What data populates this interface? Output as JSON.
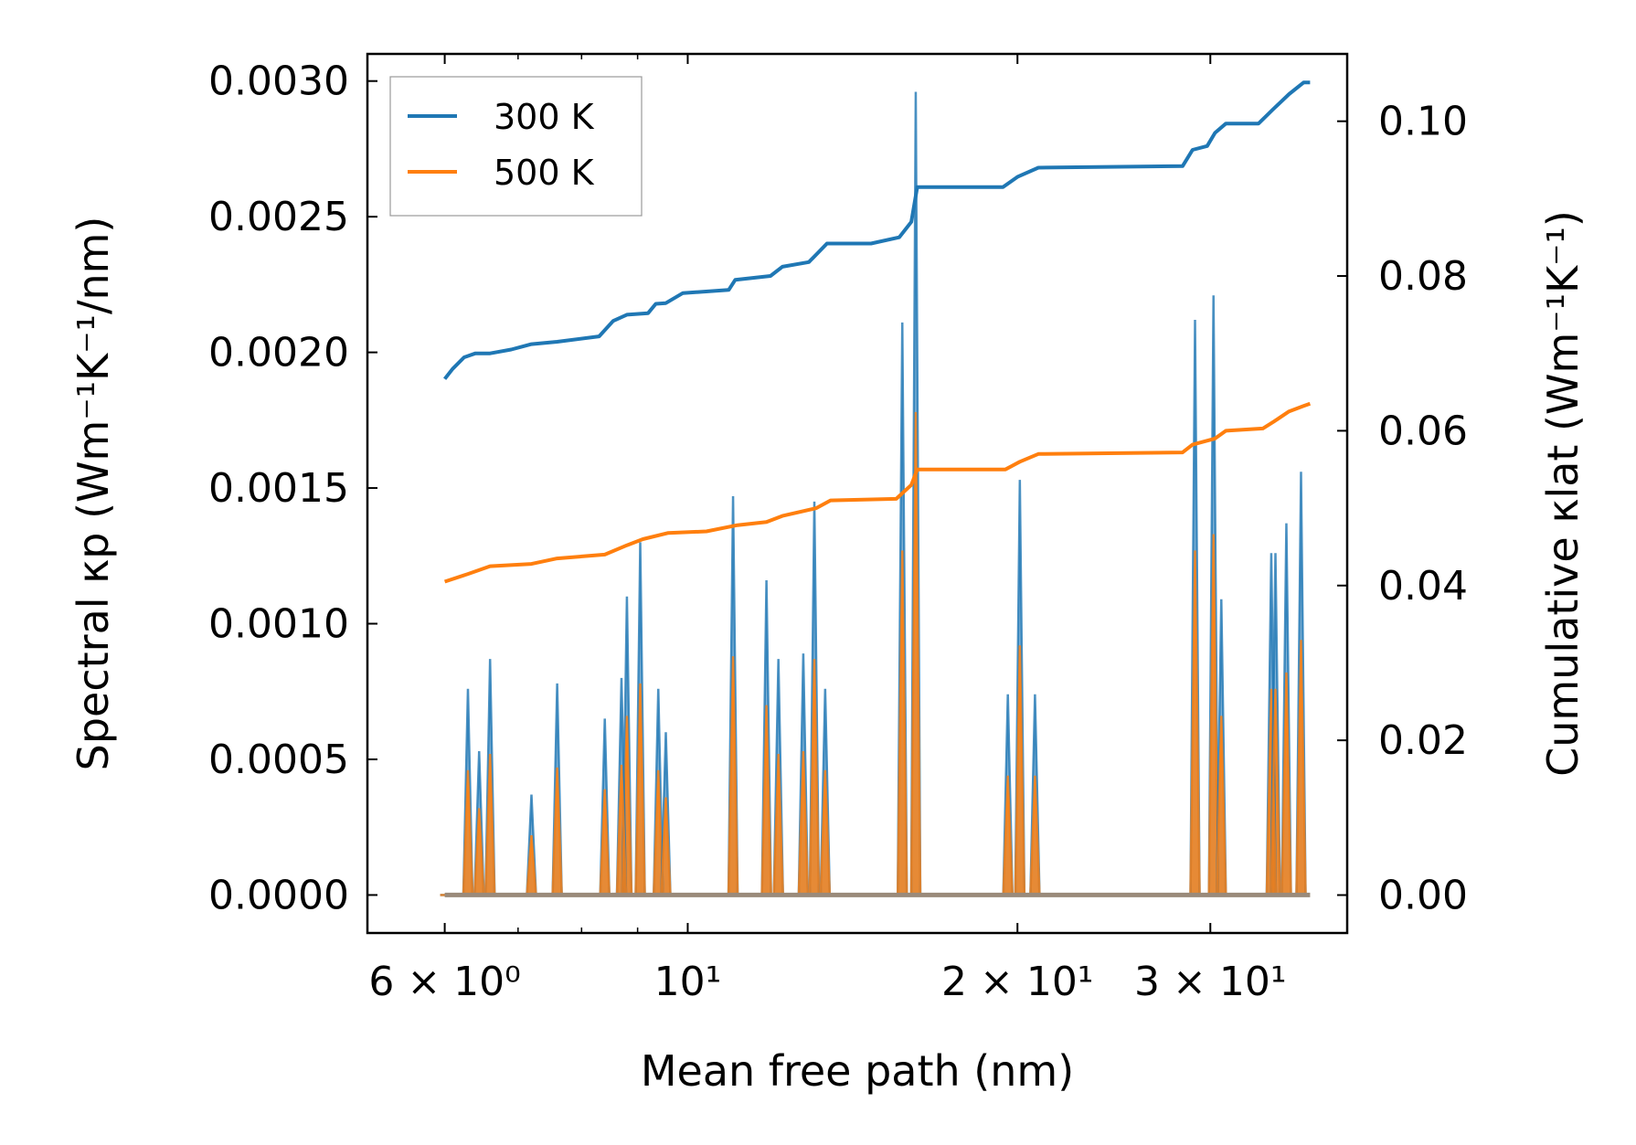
{
  "chart_data": {
    "type": "line",
    "xscale": "log",
    "xlim": [
      5.1,
      40.0
    ],
    "xlabel": "Mean free path (nm)",
    "xticks": [
      {
        "value": 6,
        "label": "6 × 10⁰"
      },
      {
        "value": 10,
        "label": "10¹"
      },
      {
        "value": 20,
        "label": "2 × 10¹"
      },
      {
        "value": 30,
        "label": "3 × 10¹"
      }
    ],
    "y_left": {
      "label": "Spectral κp (Wm⁻¹K⁻¹/nm)",
      "lim": [
        -0.00014,
        0.0031
      ],
      "ticks": [
        {
          "value": 0.0,
          "label": "0.0000"
        },
        {
          "value": 0.0005,
          "label": "0.0005"
        },
        {
          "value": 0.001,
          "label": "0.0010"
        },
        {
          "value": 0.0015,
          "label": "0.0015"
        },
        {
          "value": 0.002,
          "label": "0.0020"
        },
        {
          "value": 0.0025,
          "label": "0.0025"
        },
        {
          "value": 0.003,
          "label": "0.0030"
        }
      ]
    },
    "y_right": {
      "label": "Cumulative κlat (Wm⁻¹K⁻¹)",
      "lim": [
        -0.0049,
        0.1087
      ],
      "ticks": [
        {
          "value": 0.0,
          "label": "0.00"
        },
        {
          "value": 0.02,
          "label": "0.02"
        },
        {
          "value": 0.04,
          "label": "0.04"
        },
        {
          "value": 0.06,
          "label": "0.06"
        },
        {
          "value": 0.08,
          "label": "0.08"
        },
        {
          "value": 0.1,
          "label": "0.10"
        }
      ]
    },
    "legend": {
      "placement": "top-left",
      "entries": [
        "300 K",
        "500 K"
      ]
    },
    "colors": {
      "300 K": "#1f77b4",
      "500 K": "#ff7f0e"
    },
    "spectral_peaks": [
      {
        "x": 6.0,
        "v300": 0.0,
        "v500": 0.0
      },
      {
        "x": 6.3,
        "v300": 0.00076,
        "v500": 0.00046
      },
      {
        "x": 6.45,
        "v300": 0.00053,
        "v500": 0.00032
      },
      {
        "x": 6.6,
        "v300": 0.00087,
        "v500": 0.00052
      },
      {
        "x": 7.2,
        "v300": 0.00037,
        "v500": 0.00022
      },
      {
        "x": 7.6,
        "v300": 0.00078,
        "v500": 0.00047
      },
      {
        "x": 8.4,
        "v300": 0.00065,
        "v500": 0.00039
      },
      {
        "x": 8.8,
        "v300": 0.0011,
        "v500": 0.00066
      },
      {
        "x": 8.7,
        "v300": 0.0008,
        "v500": 0.00048
      },
      {
        "x": 9.05,
        "v300": 0.0013,
        "v500": 0.00078
      },
      {
        "x": 9.4,
        "v300": 0.00076,
        "v500": 0.00046
      },
      {
        "x": 9.55,
        "v300": 0.0006,
        "v500": 0.00036
      },
      {
        "x": 11.0,
        "v300": 0.00147,
        "v500": 0.00088
      },
      {
        "x": 11.8,
        "v300": 0.00116,
        "v500": 0.0007
      },
      {
        "x": 12.1,
        "v300": 0.00087,
        "v500": 0.00052
      },
      {
        "x": 12.75,
        "v300": 0.00089,
        "v500": 0.00053
      },
      {
        "x": 13.05,
        "v300": 0.00145,
        "v500": 0.00087
      },
      {
        "x": 13.35,
        "v300": 0.00076,
        "v500": 0.00046
      },
      {
        "x": 15.7,
        "v300": 0.00211,
        "v500": 0.00127
      },
      {
        "x": 16.15,
        "v300": 0.00296,
        "v500": 0.00178
      },
      {
        "x": 19.6,
        "v300": 0.00074,
        "v500": 0.00044
      },
      {
        "x": 20.1,
        "v300": 0.00153,
        "v500": 0.00092
      },
      {
        "x": 20.75,
        "v300": 0.00074,
        "v500": 0.00044
      },
      {
        "x": 29.05,
        "v300": 0.00212,
        "v500": 0.00127
      },
      {
        "x": 30.2,
        "v300": 0.00221,
        "v500": 0.00133
      },
      {
        "x": 30.7,
        "v300": 0.00109,
        "v500": 0.00066
      },
      {
        "x": 34.1,
        "v300": 0.00126,
        "v500": 0.00076
      },
      {
        "x": 34.4,
        "v300": 0.00126,
        "v500": 0.00076
      },
      {
        "x": 35.2,
        "v300": 0.00137,
        "v500": 0.00082
      },
      {
        "x": 36.3,
        "v300": 0.00156,
        "v500": 0.00094
      }
    ],
    "cumulative_300K": [
      [
        6.0,
        0.0667
      ],
      [
        6.1,
        0.068
      ],
      [
        6.25,
        0.0695
      ],
      [
        6.4,
        0.07
      ],
      [
        6.6,
        0.07
      ],
      [
        6.9,
        0.0705
      ],
      [
        7.2,
        0.0712
      ],
      [
        7.6,
        0.0715
      ],
      [
        8.3,
        0.0722
      ],
      [
        8.55,
        0.0742
      ],
      [
        8.8,
        0.075
      ],
      [
        9.2,
        0.0752
      ],
      [
        9.35,
        0.0764
      ],
      [
        9.55,
        0.0765
      ],
      [
        9.9,
        0.0778
      ],
      [
        10.9,
        0.0782
      ],
      [
        11.05,
        0.0795
      ],
      [
        11.9,
        0.08
      ],
      [
        12.2,
        0.0812
      ],
      [
        12.9,
        0.0818
      ],
      [
        13.15,
        0.083
      ],
      [
        13.4,
        0.0842
      ],
      [
        14.7,
        0.0842
      ],
      [
        15.6,
        0.085
      ],
      [
        16.0,
        0.087
      ],
      [
        16.2,
        0.0915
      ],
      [
        19.4,
        0.0915
      ],
      [
        20.0,
        0.0928
      ],
      [
        20.9,
        0.094
      ],
      [
        28.3,
        0.0942
      ],
      [
        28.9,
        0.0963
      ],
      [
        29.8,
        0.0968
      ],
      [
        30.3,
        0.0985
      ],
      [
        31.0,
        0.0997
      ],
      [
        33.2,
        0.0997
      ],
      [
        34.2,
        0.1015
      ],
      [
        35.4,
        0.1035
      ],
      [
        36.5,
        0.105
      ],
      [
        37.0,
        0.105
      ]
    ],
    "cumulative_500K": [
      [
        6.0,
        0.0405
      ],
      [
        6.3,
        0.0415
      ],
      [
        6.6,
        0.0425
      ],
      [
        7.2,
        0.0428
      ],
      [
        7.6,
        0.0435
      ],
      [
        8.4,
        0.044
      ],
      [
        8.8,
        0.0452
      ],
      [
        9.1,
        0.046
      ],
      [
        9.6,
        0.0468
      ],
      [
        10.4,
        0.047
      ],
      [
        11.1,
        0.0478
      ],
      [
        11.8,
        0.0482
      ],
      [
        12.2,
        0.049
      ],
      [
        13.1,
        0.05
      ],
      [
        13.5,
        0.051
      ],
      [
        15.5,
        0.0512
      ],
      [
        16.0,
        0.053
      ],
      [
        16.2,
        0.055
      ],
      [
        19.5,
        0.055
      ],
      [
        20.1,
        0.056
      ],
      [
        20.9,
        0.057
      ],
      [
        28.3,
        0.0572
      ],
      [
        28.9,
        0.0582
      ],
      [
        30.3,
        0.059
      ],
      [
        31.0,
        0.06
      ],
      [
        33.5,
        0.0603
      ],
      [
        34.3,
        0.0612
      ],
      [
        35.4,
        0.0625
      ],
      [
        36.5,
        0.0632
      ],
      [
        37.0,
        0.0635
      ]
    ]
  }
}
